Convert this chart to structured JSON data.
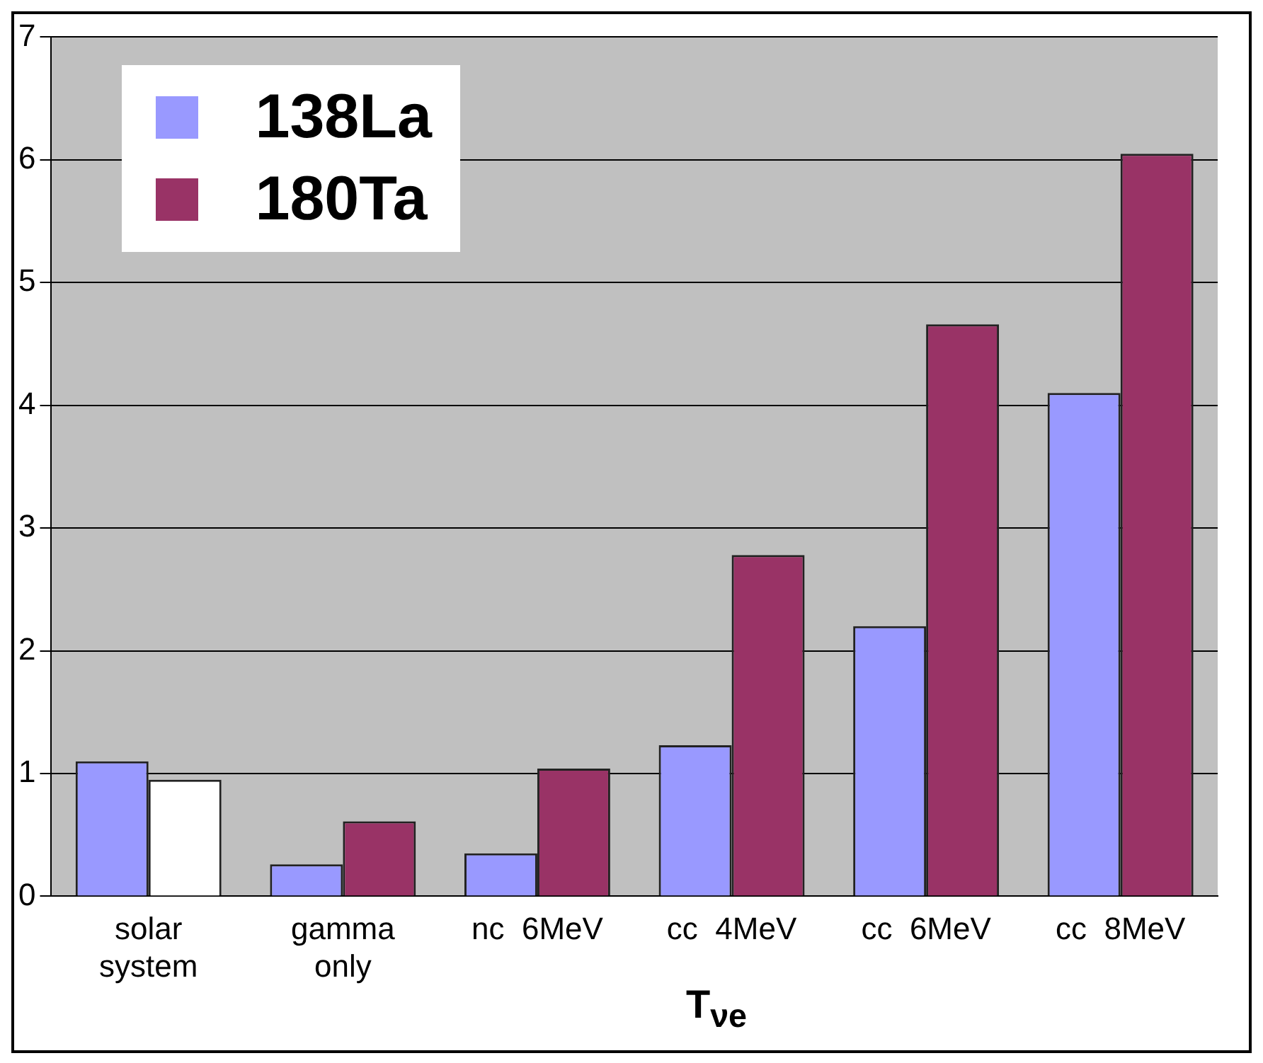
{
  "chart_data": {
    "type": "bar",
    "xlabel": "T$_{νe}$",
    "categories": [
      "solar\nsystem",
      "gamma\nonly",
      "nc  6MeV",
      "cc  4MeV",
      "cc  6MeV",
      "cc  8MeV"
    ],
    "series": [
      {
        "name": "138La",
        "color": "#9999ff",
        "colors": [
          "#9999ff",
          "#9999ff",
          "#9999ff",
          "#9999ff",
          "#9999ff",
          "#9999ff"
        ],
        "values": [
          1.1,
          0.26,
          0.35,
          1.23,
          2.2,
          4.1
        ]
      },
      {
        "name": "180Ta",
        "color": "#993366",
        "colors": [
          "#ffffff",
          "#993366",
          "#993366",
          "#993366",
          "#993366",
          "#993366"
        ],
        "values": [
          0.95,
          0.61,
          1.04,
          2.78,
          4.66,
          6.05
        ]
      }
    ],
    "ylim": [
      0,
      7
    ],
    "yticks": [
      0,
      1,
      2,
      3,
      4,
      5,
      6,
      7
    ],
    "grid": "y",
    "legend": "top left"
  }
}
